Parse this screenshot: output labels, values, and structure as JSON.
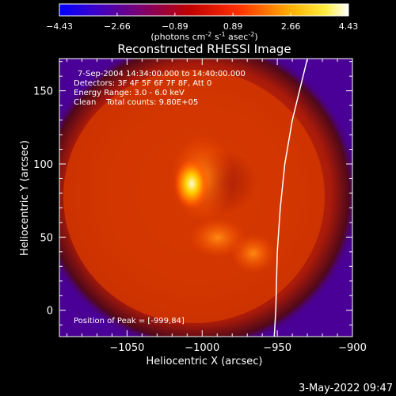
{
  "colorbar": {
    "ticks": [
      "-4.43",
      "-2.66",
      "-0.89",
      "0.89",
      "2.66",
      "4.43"
    ],
    "unit_base": "(photons cm",
    "unit_sup1": "-2",
    "unit_mid": " s",
    "unit_sup2": "-1",
    "unit_tail": " asec",
    "unit_sup3": "-2",
    "unit_close": ")"
  },
  "info": {
    "line1": "7-Sep-2004 14:34:00.000 to 14:40:00.000",
    "line2": "Detectors: 3F 4F 5F 6F 7F 8F, Att 0",
    "line3": "Energy Range: 3.0 - 6.0 keV",
    "line4": "Clean    Total counts: 9.80E+05"
  },
  "peak_label": "Position of Peak = [-999,84]",
  "footer_date": "3-May-2022 09:47",
  "chart_data": {
    "type": "heatmap",
    "title": "Reconstructed RHESSI Image",
    "xlabel": "Heliocentric X (arcsec)",
    "ylabel": "Heliocentric Y (arcsec)",
    "xlim": [
      -1095,
      -900
    ],
    "ylim": [
      -18,
      172
    ],
    "xticks": [
      -1050,
      -1000,
      -950,
      -900
    ],
    "yticks": [
      0,
      50,
      100,
      150
    ],
    "xtick_labels": [
      "−1050",
      "−1000",
      "−950",
      "−900"
    ],
    "ytick_labels": [
      "0",
      "50",
      "100",
      "150"
    ],
    "colormap": "red temperature",
    "colorbar_range": [
      -4.43,
      4.43
    ],
    "peak": [
      -999,
      84
    ],
    "limb_x_at_y": [
      [
        -930,
        172
      ],
      [
        -940,
        130
      ],
      [
        -945,
        100
      ],
      [
        -948,
        70
      ],
      [
        -950,
        40
      ],
      [
        -951,
        0
      ],
      [
        -952,
        -18
      ]
    ]
  }
}
